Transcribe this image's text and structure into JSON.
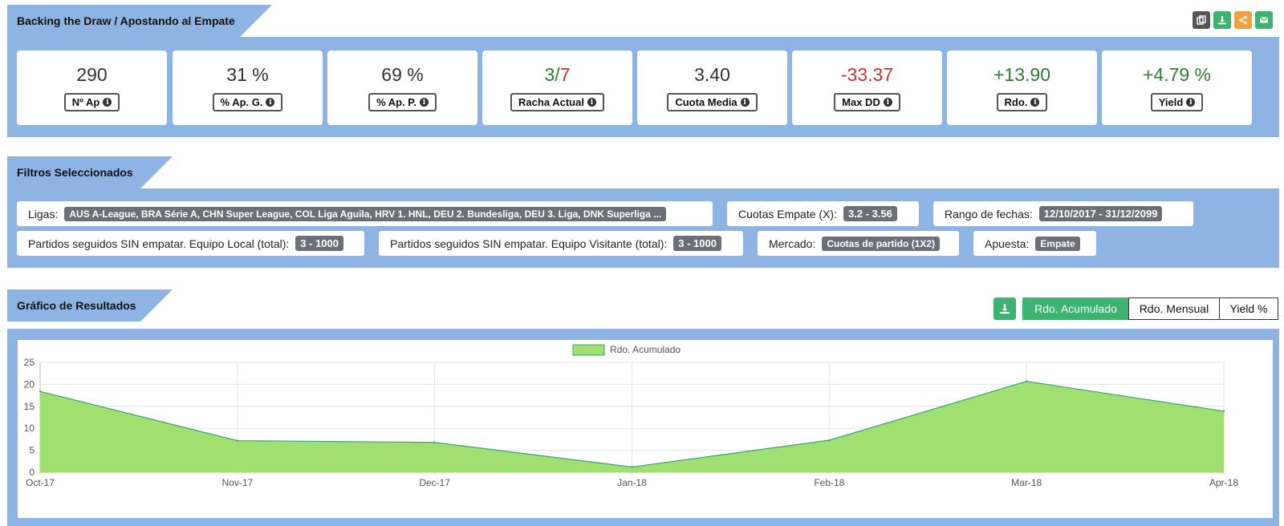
{
  "header": {
    "title": "Backing the Draw / Apostando al Empate"
  },
  "top_icons": [
    {
      "name": "copy-icon",
      "color": "#555555"
    },
    {
      "name": "download-icon",
      "color": "#3cb371"
    },
    {
      "name": "share-icon",
      "color": "#f0a040"
    },
    {
      "name": "mail-icon",
      "color": "#3cb371"
    }
  ],
  "stats": [
    {
      "value": "290",
      "label": "Nº Ap"
    },
    {
      "value": "31 %",
      "label": "% Ap. G."
    },
    {
      "value": "69 %",
      "label": "% Ap. P."
    },
    {
      "value_a": "3",
      "value_sep": "/",
      "value_b": "7",
      "label": "Racha Actual"
    },
    {
      "value": "3.40",
      "label": "Cuota Media"
    },
    {
      "value": "-33.37",
      "label": "Max DD"
    },
    {
      "value": "+13.90",
      "label": "Rdo."
    },
    {
      "value": "+4.79 %",
      "label": "Yield"
    }
  ],
  "filters_section": {
    "title": "Filtros Seleccionados"
  },
  "filters": [
    {
      "label": "Ligas:",
      "value": "AUS A-League, BRA Série A, CHN Super League, COL Liga Aguila, HRV 1. HNL, DEU 2. Bundesliga, DEU 3. Liga, DNK Superliga ..."
    },
    {
      "label": "Cuotas Empate (X):",
      "value": "3.2 - 3.56"
    },
    {
      "label": "Rango de fechas:",
      "value": "12/10/2017 - 31/12/2099"
    },
    {
      "label": "Partidos seguidos SIN empatar. Equipo Local (total):",
      "value": "3 - 1000"
    },
    {
      "label": "Partidos seguidos SIN empatar. Equipo Visitante (total):",
      "value": "3 - 1000"
    },
    {
      "label": "Mercado:",
      "value": "Cuotas de partido (1X2)"
    },
    {
      "label": "Apuesta:",
      "value": "Empate"
    }
  ],
  "chart_section": {
    "title": "Gráfico de Resultados"
  },
  "chart_controls": {
    "tabs": [
      "Rdo. Acumulado",
      "Rdo. Mensual",
      "Yield %"
    ],
    "active": "Rdo. Acumulado"
  },
  "chart_data": {
    "type": "area",
    "legend": "Rdo. Acumulado",
    "legend_position": "top",
    "fill_color": "#9fe070",
    "line_color": "#3aa07a",
    "grid": true,
    "x": [
      "Oct-17",
      "Nov-17",
      "Dec-17",
      "Jan-18",
      "Feb-18",
      "Mar-18",
      "Apr-18"
    ],
    "series": [
      {
        "name": "Rdo. Acumulado",
        "values": [
          18.4,
          7.2,
          6.8,
          1.2,
          7.3,
          20.7,
          13.9
        ]
      }
    ],
    "ylim": [
      0,
      25
    ],
    "yticks": [
      0,
      5,
      10,
      15,
      20,
      25
    ]
  }
}
